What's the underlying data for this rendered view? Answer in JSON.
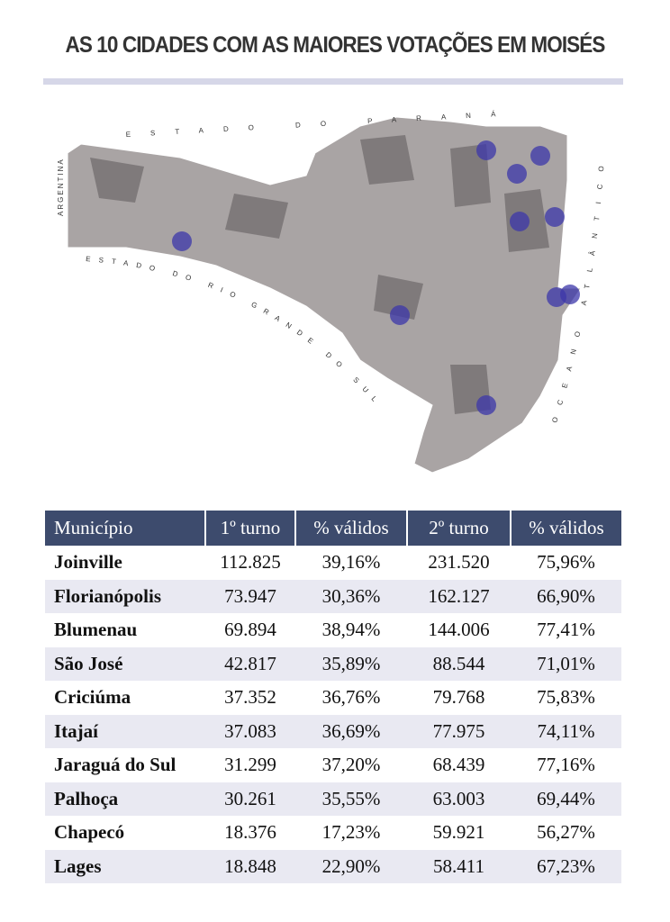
{
  "title": "AS 10 CIDADES COM AS MAIORES VOTAÇÕES EM MOISÉS",
  "map": {
    "labels": {
      "north": "ESTADO DO PARANÁ",
      "west": "ARGENTINA",
      "south": "ESTADO DO RIO GRANDE DO SUL",
      "east": "OCEANO ATLÂNTICO"
    }
  },
  "table": {
    "header": [
      "Município",
      "1º turno",
      "% válidos",
      "2º turno",
      "% válidos"
    ],
    "rows": [
      [
        "Joinville",
        "112.825",
        "39,16%",
        "231.520",
        "75,96%"
      ],
      [
        "Florianópolis",
        "73.947",
        "30,36%",
        "162.127",
        "66,90%"
      ],
      [
        "Blumenau",
        "69.894",
        "38,94%",
        "144.006",
        "77,41%"
      ],
      [
        "São José",
        "42.817",
        "35,89%",
        "88.544",
        "71,01%"
      ],
      [
        "Criciúma",
        "37.352",
        "36,76%",
        "79.768",
        "75,83%"
      ],
      [
        "Itajaí",
        "37.083",
        "36,69%",
        "77.975",
        "74,11%"
      ],
      [
        "Jaraguá do Sul",
        "31.299",
        "37,20%",
        "68.439",
        "77,16%"
      ],
      [
        "Palhoça",
        "30.261",
        "35,55%",
        "63.003",
        "69,44%"
      ],
      [
        "Chapecó",
        "18.376",
        "17,23%",
        "59.921",
        "56,27%"
      ],
      [
        "Lages",
        "18.848",
        "22,90%",
        "58.411",
        "67,23%"
      ]
    ]
  }
}
